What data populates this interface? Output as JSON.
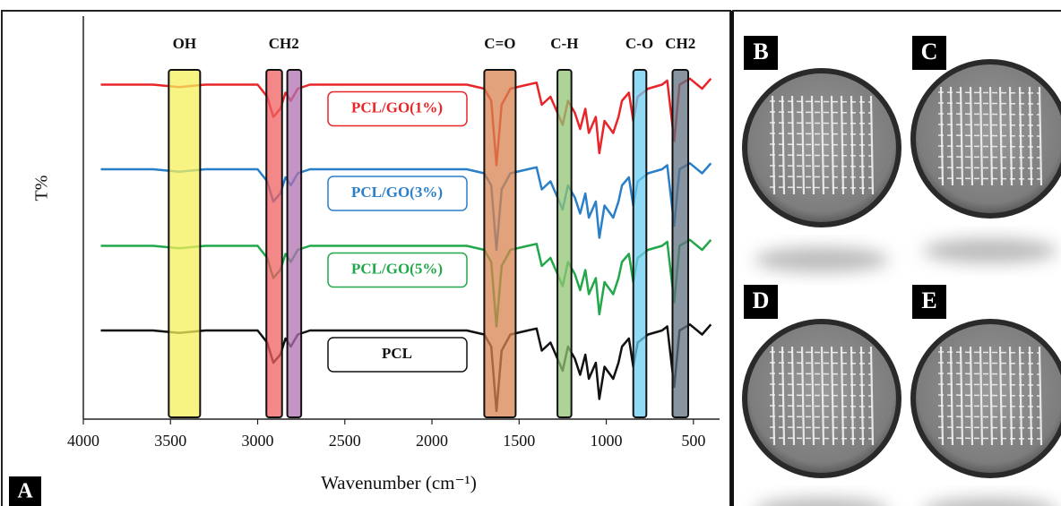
{
  "chart_data": {
    "type": "line",
    "panel_label": "A",
    "x_label": "Wavenumber (cm⁻¹)",
    "y_label": "T%",
    "xlim": [
      4000,
      350
    ],
    "ylim": [
      0,
      100
    ],
    "xticks": [
      4000,
      3500,
      3000,
      2500,
      2000,
      1500,
      1000,
      500
    ],
    "grid": false,
    "x": [
      3900,
      3600,
      3450,
      3300,
      3000,
      2945,
      2910,
      2870,
      2840,
      2810,
      2770,
      2700,
      1800,
      1700,
      1660,
      1630,
      1600,
      1550,
      1450,
      1400,
      1370,
      1320,
      1290,
      1250,
      1220,
      1180,
      1150,
      1120,
      1100,
      1060,
      1040,
      1010,
      960,
      930,
      910,
      870,
      845,
      820,
      760,
      680,
      650,
      610,
      580,
      520,
      450,
      400
    ],
    "series": [
      {
        "name": "PCL/GO(1%)",
        "color": "#e8262a",
        "values": [
          83,
          83,
          82.4,
          83,
          83,
          80,
          75,
          77,
          81,
          79,
          82,
          83,
          83,
          82,
          79,
          63,
          78,
          82,
          83,
          83.5,
          78,
          80,
          77,
          73,
          79,
          76,
          72,
          77,
          71,
          75,
          66,
          74,
          71,
          75,
          79,
          81,
          74,
          80,
          82,
          83,
          84,
          69,
          83,
          84.5,
          82,
          84.5
        ]
      },
      {
        "name": "PCL/GO(3%)",
        "color": "#2a7fc9",
        "values": [
          62,
          62,
          61.4,
          62,
          62,
          59,
          54,
          56,
          60,
          58,
          61,
          62,
          62,
          61,
          58,
          42,
          57,
          61,
          62,
          62.5,
          57,
          59,
          56,
          52,
          58,
          55,
          51,
          56,
          50,
          54,
          45,
          53,
          50,
          54,
          58,
          60,
          53,
          59,
          61,
          62,
          63,
          48,
          62,
          63.5,
          61,
          63.5
        ]
      },
      {
        "name": "PCL/GO(5%)",
        "color": "#22a84a",
        "values": [
          43,
          43,
          42.4,
          43,
          43,
          40,
          35,
          37,
          41,
          39,
          42,
          43,
          43,
          42,
          39,
          23,
          38,
          42,
          43,
          43.5,
          38,
          40,
          37,
          33,
          39,
          36,
          32,
          37,
          31,
          35,
          26,
          34,
          31,
          35,
          39,
          41,
          34,
          40,
          42,
          43,
          44,
          29,
          43,
          44.5,
          42,
          44.5
        ]
      },
      {
        "name": "PCL",
        "color": "#111111",
        "values": [
          22,
          22,
          21.4,
          22,
          22,
          19,
          14,
          16,
          20,
          18,
          21,
          22,
          22,
          21,
          18,
          2,
          17,
          21,
          22,
          22.5,
          17,
          19,
          16,
          12,
          18,
          15,
          11,
          16,
          10,
          14,
          5,
          13,
          10,
          14,
          18,
          20,
          13,
          19,
          21,
          22,
          23,
          8,
          22,
          23.5,
          21,
          23.5
        ]
      }
    ],
    "bands": [
      {
        "from": 3510,
        "to": 3330,
        "color": "#f5f05a"
      },
      {
        "from": 2950,
        "to": 2860,
        "color": "#f06060"
      },
      {
        "from": 2830,
        "to": 2750,
        "color": "#b070b0"
      },
      {
        "from": 1700,
        "to": 1520,
        "color": "#d8834f"
      },
      {
        "from": 1280,
        "to": 1200,
        "color": "#92c673"
      },
      {
        "from": 845,
        "to": 770,
        "color": "#6ccdf2"
      },
      {
        "from": 620,
        "to": 530,
        "color": "#607282"
      }
    ],
    "annotations": [
      {
        "text": "OH",
        "x": 3420
      },
      {
        "text": "CH2",
        "x": 2850
      },
      {
        "text": "C=O",
        "x": 1610
      },
      {
        "text": "C-H",
        "x": 1240
      },
      {
        "text": "C-O",
        "x": 810
      },
      {
        "text": "CH2",
        "x": 575
      }
    ]
  },
  "photo_panels": [
    {
      "label": "B"
    },
    {
      "label": "C"
    },
    {
      "label": "D"
    },
    {
      "label": "E"
    }
  ]
}
